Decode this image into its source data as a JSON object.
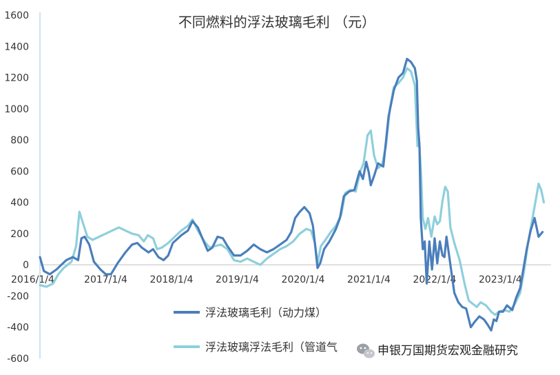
{
  "chart_data": {
    "type": "line",
    "title": "不同燃料的浮法玻璃毛利 （元）",
    "xlabel": "",
    "ylabel": "",
    "ylim": [
      -600,
      1600
    ],
    "y_ticks": [
      1600,
      1400,
      1200,
      1000,
      800,
      600,
      400,
      200,
      0,
      -200,
      -400,
      -600
    ],
    "x_tick_labels": [
      "2016/1/4",
      "2017/1/4",
      "2018/1/4",
      "2019/1/4",
      "2020/1/4",
      "2021/1/4",
      "2022/1/4",
      "2023/1/4"
    ],
    "x_ticks_t": [
      2016.0,
      2017.0,
      2018.0,
      2019.0,
      2020.0,
      2021.0,
      2022.0,
      2023.0
    ],
    "x_domain_t": [
      2016.0,
      2023.77
    ],
    "grid": false,
    "legend_position": "bottom",
    "series": [
      {
        "name": "浮法玻璃毛利（动力煤）",
        "color": "#4a7ebb",
        "points": [
          [
            2016.0,
            50
          ],
          [
            2016.06,
            -40
          ],
          [
            2016.15,
            -60
          ],
          [
            2016.25,
            -30
          ],
          [
            2016.4,
            30
          ],
          [
            2016.5,
            50
          ],
          [
            2016.58,
            30
          ],
          [
            2016.63,
            170
          ],
          [
            2016.68,
            180
          ],
          [
            2016.75,
            130
          ],
          [
            2016.82,
            20
          ],
          [
            2016.92,
            -30
          ],
          [
            2017.0,
            -60
          ],
          [
            2017.08,
            -60
          ],
          [
            2017.18,
            10
          ],
          [
            2017.3,
            80
          ],
          [
            2017.4,
            130
          ],
          [
            2017.48,
            140
          ],
          [
            2017.55,
            110
          ],
          [
            2017.65,
            80
          ],
          [
            2017.72,
            100
          ],
          [
            2017.8,
            50
          ],
          [
            2017.88,
            30
          ],
          [
            2017.95,
            60
          ],
          [
            2018.02,
            140
          ],
          [
            2018.15,
            190
          ],
          [
            2018.25,
            220
          ],
          [
            2018.32,
            280
          ],
          [
            2018.4,
            240
          ],
          [
            2018.48,
            160
          ],
          [
            2018.55,
            90
          ],
          [
            2018.62,
            110
          ],
          [
            2018.7,
            180
          ],
          [
            2018.78,
            170
          ],
          [
            2018.85,
            120
          ],
          [
            2018.95,
            60
          ],
          [
            2019.05,
            60
          ],
          [
            2019.15,
            90
          ],
          [
            2019.25,
            130
          ],
          [
            2019.35,
            100
          ],
          [
            2019.45,
            80
          ],
          [
            2019.55,
            100
          ],
          [
            2019.65,
            130
          ],
          [
            2019.75,
            160
          ],
          [
            2019.82,
            210
          ],
          [
            2019.88,
            300
          ],
          [
            2019.95,
            340
          ],
          [
            2020.02,
            370
          ],
          [
            2020.1,
            330
          ],
          [
            2020.15,
            250
          ],
          [
            2020.19,
            100
          ],
          [
            2020.22,
            -20
          ],
          [
            2020.26,
            10
          ],
          [
            2020.32,
            100
          ],
          [
            2020.4,
            150
          ],
          [
            2020.5,
            230
          ],
          [
            2020.56,
            300
          ],
          [
            2020.62,
            440
          ],
          [
            2020.7,
            470
          ],
          [
            2020.78,
            480
          ],
          [
            2020.86,
            600
          ],
          [
            2020.91,
            550
          ],
          [
            2020.96,
            660
          ],
          [
            2021.0,
            590
          ],
          [
            2021.03,
            510
          ],
          [
            2021.08,
            570
          ],
          [
            2021.14,
            650
          ],
          [
            2021.22,
            630
          ],
          [
            2021.3,
            950
          ],
          [
            2021.38,
            1120
          ],
          [
            2021.45,
            1200
          ],
          [
            2021.52,
            1230
          ],
          [
            2021.58,
            1320
          ],
          [
            2021.64,
            1300
          ],
          [
            2021.7,
            1260
          ],
          [
            2021.73,
            1180
          ],
          [
            2021.75,
            880
          ],
          [
            2021.77,
            760
          ],
          [
            2021.79,
            300
          ],
          [
            2021.82,
            100
          ],
          [
            2021.85,
            150
          ],
          [
            2021.88,
            -120
          ],
          [
            2021.92,
            150
          ],
          [
            2021.96,
            -30
          ],
          [
            2022.0,
            170
          ],
          [
            2022.04,
            10
          ],
          [
            2022.08,
            150
          ],
          [
            2022.12,
            60
          ],
          [
            2022.15,
            50
          ],
          [
            2022.18,
            180
          ],
          [
            2022.24,
            0
          ],
          [
            2022.3,
            -180
          ],
          [
            2022.36,
            -240
          ],
          [
            2022.42,
            -270
          ],
          [
            2022.48,
            -280
          ],
          [
            2022.55,
            -400
          ],
          [
            2022.6,
            -370
          ],
          [
            2022.68,
            -330
          ],
          [
            2022.75,
            -350
          ],
          [
            2022.8,
            -380
          ],
          [
            2022.86,
            -420
          ],
          [
            2022.9,
            -350
          ],
          [
            2022.94,
            -360
          ],
          [
            2022.98,
            -300
          ],
          [
            2023.04,
            -300
          ],
          [
            2023.1,
            -260
          ],
          [
            2023.18,
            -290
          ],
          [
            2023.24,
            -210
          ],
          [
            2023.3,
            -150
          ],
          [
            2023.4,
            100
          ],
          [
            2023.46,
            220
          ],
          [
            2023.52,
            300
          ],
          [
            2023.58,
            180
          ],
          [
            2023.64,
            210
          ]
        ]
      },
      {
        "name": "浮法玻璃浮法毛利（管道气）",
        "color": "#8ecfdc",
        "points": [
          [
            2016.0,
            -130
          ],
          [
            2016.1,
            -140
          ],
          [
            2016.2,
            -120
          ],
          [
            2016.28,
            -60
          ],
          [
            2016.36,
            -20
          ],
          [
            2016.42,
            0
          ],
          [
            2016.48,
            20
          ],
          [
            2016.55,
            120
          ],
          [
            2016.6,
            340
          ],
          [
            2016.66,
            260
          ],
          [
            2016.72,
            180
          ],
          [
            2016.8,
            160
          ],
          [
            2016.9,
            180
          ],
          [
            2017.0,
            200
          ],
          [
            2017.1,
            220
          ],
          [
            2017.2,
            240
          ],
          [
            2017.3,
            220
          ],
          [
            2017.4,
            200
          ],
          [
            2017.5,
            190
          ],
          [
            2017.58,
            150
          ],
          [
            2017.64,
            190
          ],
          [
            2017.72,
            170
          ],
          [
            2017.78,
            100
          ],
          [
            2017.85,
            110
          ],
          [
            2017.95,
            140
          ],
          [
            2018.05,
            180
          ],
          [
            2018.15,
            220
          ],
          [
            2018.25,
            250
          ],
          [
            2018.32,
            290
          ],
          [
            2018.4,
            220
          ],
          [
            2018.5,
            150
          ],
          [
            2018.58,
            110
          ],
          [
            2018.66,
            120
          ],
          [
            2018.75,
            130
          ],
          [
            2018.85,
            100
          ],
          [
            2018.95,
            30
          ],
          [
            2019.05,
            20
          ],
          [
            2019.15,
            40
          ],
          [
            2019.25,
            20
          ],
          [
            2019.35,
            0
          ],
          [
            2019.45,
            40
          ],
          [
            2019.55,
            70
          ],
          [
            2019.65,
            100
          ],
          [
            2019.75,
            120
          ],
          [
            2019.85,
            150
          ],
          [
            2019.95,
            200
          ],
          [
            2020.05,
            230
          ],
          [
            2020.12,
            220
          ],
          [
            2020.18,
            140
          ],
          [
            2020.22,
            10
          ],
          [
            2020.27,
            120
          ],
          [
            2020.34,
            160
          ],
          [
            2020.42,
            210
          ],
          [
            2020.5,
            250
          ],
          [
            2020.58,
            320
          ],
          [
            2020.64,
            460
          ],
          [
            2020.72,
            480
          ],
          [
            2020.8,
            470
          ],
          [
            2020.87,
            600
          ],
          [
            2020.92,
            650
          ],
          [
            2020.98,
            830
          ],
          [
            2021.03,
            860
          ],
          [
            2021.08,
            700
          ],
          [
            2021.14,
            620
          ],
          [
            2021.2,
            640
          ],
          [
            2021.26,
            760
          ],
          [
            2021.32,
            1000
          ],
          [
            2021.38,
            1140
          ],
          [
            2021.44,
            1160
          ],
          [
            2021.52,
            1200
          ],
          [
            2021.58,
            1260
          ],
          [
            2021.64,
            1240
          ],
          [
            2021.7,
            1150
          ],
          [
            2021.74,
            760
          ],
          [
            2021.76,
            820
          ],
          [
            2021.79,
            620
          ],
          [
            2021.82,
            300
          ],
          [
            2021.86,
            230
          ],
          [
            2021.9,
            300
          ],
          [
            2021.95,
            180
          ],
          [
            2022.0,
            310
          ],
          [
            2022.04,
            260
          ],
          [
            2022.08,
            280
          ],
          [
            2022.12,
            410
          ],
          [
            2022.16,
            500
          ],
          [
            2022.2,
            470
          ],
          [
            2022.24,
            240
          ],
          [
            2022.3,
            140
          ],
          [
            2022.38,
            30
          ],
          [
            2022.46,
            -130
          ],
          [
            2022.52,
            -230
          ],
          [
            2022.58,
            -250
          ],
          [
            2022.64,
            -270
          ],
          [
            2022.7,
            -240
          ],
          [
            2022.78,
            -260
          ],
          [
            2022.86,
            -300
          ],
          [
            2022.92,
            -320
          ],
          [
            2022.98,
            -300
          ],
          [
            2023.06,
            -290
          ],
          [
            2023.14,
            -300
          ],
          [
            2023.22,
            -250
          ],
          [
            2023.3,
            -180
          ],
          [
            2023.36,
            -40
          ],
          [
            2023.42,
            140
          ],
          [
            2023.48,
            280
          ],
          [
            2023.54,
            420
          ],
          [
            2023.58,
            520
          ],
          [
            2023.62,
            480
          ],
          [
            2023.66,
            400
          ]
        ]
      }
    ]
  },
  "legend": {
    "items": [
      {
        "label": "浮法玻璃毛利（动力煤）",
        "color": "#4a7ebb"
      },
      {
        "label": "浮法玻璃浮法毛利（管道气",
        "color": "#8ecfdc"
      }
    ]
  },
  "watermark": {
    "text": "申银万国期货宏观金融研究",
    "icon": "wechat-icon"
  }
}
